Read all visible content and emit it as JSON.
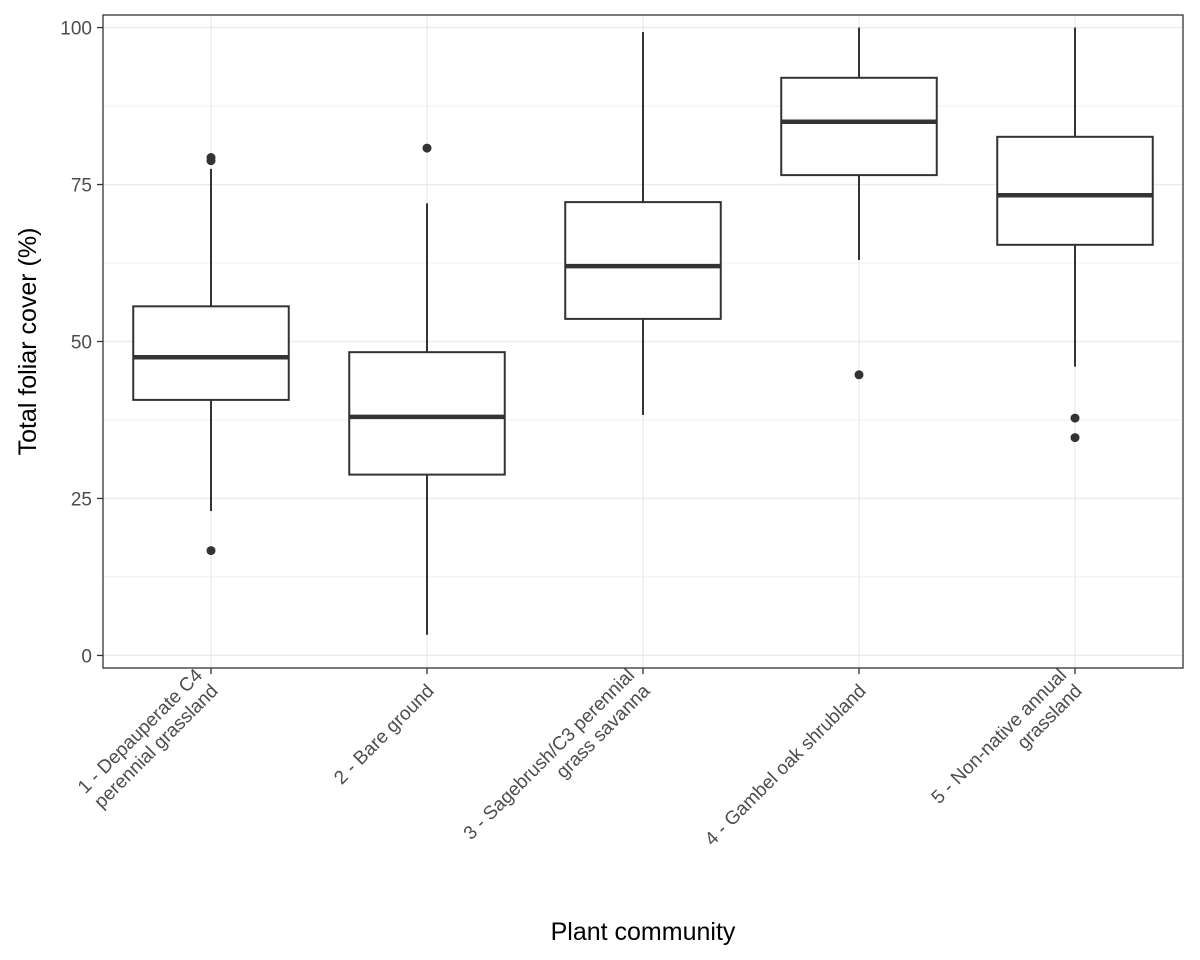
{
  "chart_data": {
    "type": "boxplot",
    "title": "",
    "xlabel": "Plant community",
    "ylabel": "Total foliar cover (%)",
    "ylim": [
      -2,
      102
    ],
    "yticks": [
      0,
      25,
      50,
      75,
      100
    ],
    "grid": true,
    "theme": "black-and-white",
    "colors": {
      "box_stroke": "#333333",
      "grid": "#ebebeb",
      "panel_border": "#333333"
    },
    "categories": [
      [
        "1 - Depauperate C4",
        "perennial grassland"
      ],
      [
        "2 - Bare ground"
      ],
      [
        "3 - Sagebrush/C3 perennial",
        "grass savanna"
      ],
      [
        "4 - Gambel oak shrubland"
      ],
      [
        "5 - Non-native annual",
        "grassland"
      ]
    ],
    "boxes": [
      {
        "whisker_low": 23,
        "q1": 40.7,
        "median": 47.5,
        "q3": 55.6,
        "whisker_high": 77.5,
        "outliers": [
          16.7,
          78.8,
          79.3
        ]
      },
      {
        "whisker_low": 3.3,
        "q1": 28.8,
        "median": 38.0,
        "q3": 48.3,
        "whisker_high": 72.0,
        "outliers": [
          80.8
        ]
      },
      {
        "whisker_low": 38.3,
        "q1": 53.6,
        "median": 62.0,
        "q3": 72.2,
        "whisker_high": 99.3,
        "outliers": []
      },
      {
        "whisker_low": 63.0,
        "q1": 76.5,
        "median": 85.0,
        "q3": 92.0,
        "whisker_high": 100.0,
        "outliers": [
          44.7
        ]
      },
      {
        "whisker_low": 46.0,
        "q1": 65.4,
        "median": 73.3,
        "q3": 82.6,
        "whisker_high": 100.0,
        "outliers": [
          34.7,
          37.8
        ]
      }
    ]
  }
}
